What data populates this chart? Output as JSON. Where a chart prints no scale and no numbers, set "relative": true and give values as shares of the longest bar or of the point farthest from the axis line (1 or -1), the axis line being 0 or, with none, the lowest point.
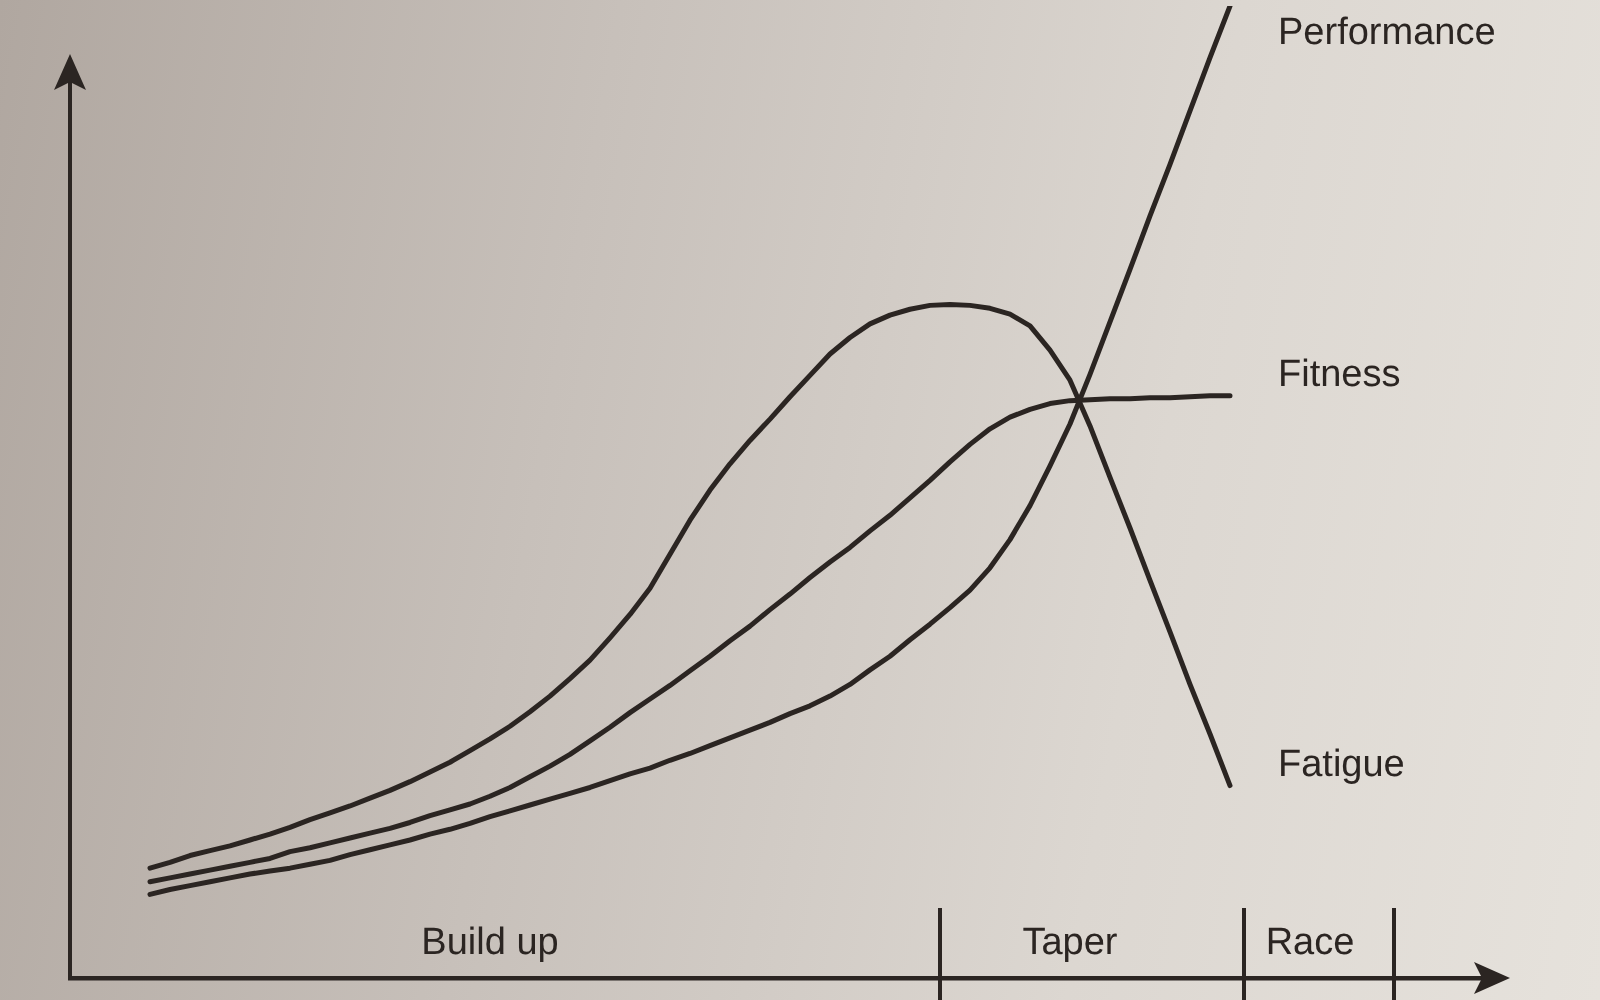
{
  "chart_data": {
    "type": "line",
    "relative": true,
    "categories": [
      null,
      null,
      null,
      null,
      null,
      null,
      null,
      null,
      null,
      null,
      null,
      null,
      null,
      null,
      null,
      null,
      null,
      null,
      null,
      null,
      null,
      "Build up",
      null,
      null,
      null,
      null,
      null,
      null,
      null,
      null,
      null,
      null,
      null,
      null,
      null,
      null,
      null,
      null,
      null,
      null,
      null,
      null,
      null,
      null,
      null,
      null,
      null,
      null,
      null,
      null,
      "Taper",
      null,
      null,
      null,
      null,
      null,
      null,
      null,
      null,
      null,
      null,
      null,
      "Race",
      null,
      null,
      null,
      null,
      null,
      null,
      null,
      null,
      null
    ],
    "series": [
      {
        "name": "Performance",
        "color": "#2b2522",
        "values": [
          null,
          null,
          null,
          null,
          0.086,
          0.091,
          0.095,
          0.099,
          0.103,
          0.107,
          0.11,
          0.113,
          0.117,
          0.121,
          0.127,
          0.132,
          0.137,
          0.142,
          0.148,
          0.153,
          0.159,
          0.166,
          0.172,
          0.178,
          0.184,
          0.19,
          0.196,
          0.203,
          0.21,
          0.216,
          0.224,
          0.231,
          0.239,
          0.247,
          0.255,
          0.263,
          0.272,
          0.28,
          0.29,
          0.302,
          0.317,
          0.331,
          0.348,
          0.364,
          0.381,
          0.399,
          0.422,
          0.451,
          0.486,
          0.527,
          0.57,
          0.621,
          0.675,
          0.729,
          0.784,
          0.837,
          0.892,
          0.947,
          1,
          null,
          null,
          null,
          null,
          null,
          null,
          null,
          null,
          null,
          null,
          null,
          null,
          null
        ]
      },
      {
        "name": "Fitness",
        "color": "#2b2522",
        "values": [
          null,
          null,
          null,
          null,
          0.099,
          0.103,
          0.107,
          0.111,
          0.115,
          0.119,
          0.123,
          0.13,
          0.134,
          0.139,
          0.144,
          0.149,
          0.154,
          0.16,
          0.167,
          0.173,
          0.179,
          0.187,
          0.196,
          0.207,
          0.218,
          0.23,
          0.244,
          0.258,
          0.273,
          0.287,
          0.301,
          0.316,
          0.331,
          0.347,
          0.362,
          0.379,
          0.395,
          0.412,
          0.428,
          0.443,
          0.46,
          0.476,
          0.494,
          0.512,
          0.531,
          0.549,
          0.565,
          0.577,
          0.585,
          0.591,
          0.594,
          0.595,
          0.596,
          0.596,
          0.597,
          0.597,
          0.598,
          0.599,
          0.599,
          null,
          null,
          null,
          null,
          null,
          null,
          null,
          null,
          null,
          null,
          null,
          null,
          null
        ]
      },
      {
        "name": "Fatigue",
        "color": "#2b2522",
        "values": [
          null,
          null,
          null,
          null,
          0.113,
          0.119,
          0.126,
          0.131,
          0.136,
          0.142,
          0.148,
          0.155,
          0.163,
          0.17,
          0.177,
          0.185,
          0.193,
          0.202,
          0.212,
          0.222,
          0.234,
          0.246,
          0.259,
          0.274,
          0.29,
          0.308,
          0.327,
          0.35,
          0.374,
          0.401,
          0.436,
          0.471,
          0.502,
          0.529,
          0.553,
          0.575,
          0.598,
          0.62,
          0.642,
          0.659,
          0.673,
          0.682,
          0.688,
          0.692,
          0.693,
          0.692,
          0.689,
          0.683,
          0.671,
          0.646,
          0.615,
          0.568,
          0.515,
          0.463,
          0.409,
          0.356,
          0.302,
          0.251,
          0.198,
          null,
          null,
          null,
          null,
          null,
          null,
          null,
          null,
          null,
          null,
          null,
          null,
          null
        ]
      }
    ]
  }
}
